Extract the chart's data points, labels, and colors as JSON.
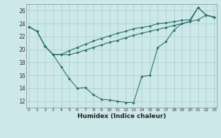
{
  "xlabel": "Humidex (Indice chaleur)",
  "background_color": "#cce8e8",
  "grid_color": "#aacccc",
  "line_color": "#2a6e6e",
  "hours": [
    0,
    1,
    2,
    3,
    4,
    5,
    6,
    7,
    8,
    9,
    10,
    11,
    12,
    13,
    14,
    15,
    16,
    17,
    18,
    19,
    20,
    21,
    22,
    23
  ],
  "main_curve": [
    23.5,
    22.8,
    20.5,
    19.2,
    17.3,
    15.5,
    14.0,
    14.1,
    13.0,
    12.3,
    12.2,
    12.0,
    11.8,
    11.8,
    15.8,
    16.0,
    20.3,
    21.2,
    23.0,
    24.0,
    24.3,
    26.5,
    25.3,
    25.0
  ],
  "upper_line": [
    23.5,
    22.8,
    20.5,
    19.2,
    19.2,
    19.8,
    20.3,
    20.8,
    21.3,
    21.7,
    22.1,
    22.5,
    22.8,
    23.2,
    23.4,
    23.6,
    24.0,
    24.1,
    24.3,
    24.5,
    24.6,
    26.5,
    25.3,
    25.0
  ],
  "lower_line": [
    23.5,
    22.8,
    20.5,
    19.2,
    19.2,
    19.2,
    19.5,
    19.9,
    20.3,
    20.7,
    21.1,
    21.4,
    21.8,
    22.2,
    22.5,
    22.8,
    23.1,
    23.4,
    23.7,
    24.0,
    24.3,
    24.6,
    25.3,
    25.0
  ],
  "xlim": [
    -0.3,
    23.3
  ],
  "ylim": [
    11.0,
    27.0
  ],
  "yticks": [
    12,
    14,
    16,
    18,
    20,
    22,
    24,
    26
  ],
  "xticks": [
    0,
    1,
    2,
    3,
    4,
    5,
    6,
    7,
    8,
    9,
    10,
    11,
    12,
    13,
    14,
    15,
    16,
    17,
    18,
    19,
    20,
    21,
    22,
    23
  ]
}
